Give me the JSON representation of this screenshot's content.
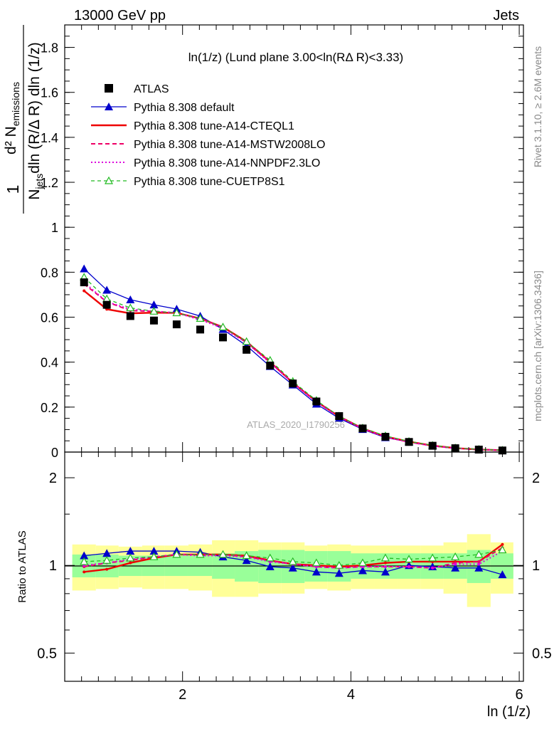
{
  "header": {
    "left": "13000 GeV pp",
    "right": "Jets"
  },
  "side_labels": {
    "rivet": "Rivet 3.1.10, ≥ 2.6M events",
    "mcplots": "mcplots.cern.ch [arXiv:1306.3436]"
  },
  "analysis_id": "ATLAS_2020_I1790256",
  "ratio_ylabel": "Ratio to ATLAS",
  "colors": {
    "data": "#000000",
    "default": "#0000cc",
    "cteql1": "#ee0000",
    "mstw": "#ee0066",
    "nnpdf": "#dd00dd",
    "cuetp8s1": "#22bb22",
    "band_inner": "#99ff99",
    "band_outer": "#ffff99"
  },
  "chart_data": {
    "type": "line",
    "title": "ln(1/z) (Lund plane 3.00<ln(RΔ R)<3.33)",
    "xlabel": "ln (1/z)",
    "ylabel": "1/N_jets d² N_emissions / dln (R/Δ R) dln (1/z)",
    "xlim": [
      0.6,
      6.05
    ],
    "ylim": [
      0,
      1.9
    ],
    "ratio_ylim": [
      0.4,
      2.45
    ],
    "ratio_log_scale": true,
    "x_ticks": [
      2,
      4,
      6
    ],
    "y_ticks": [
      0,
      0.2,
      0.4,
      0.6,
      0.8,
      1,
      1.2,
      1.4,
      1.6,
      1.8
    ],
    "ratio_ticks": [
      0.5,
      1,
      2
    ],
    "legend_position": "top-left",
    "x": [
      0.83,
      1.1,
      1.38,
      1.66,
      1.93,
      2.21,
      2.48,
      2.76,
      3.04,
      3.31,
      3.59,
      3.86,
      4.14,
      4.41,
      4.69,
      4.97,
      5.24,
      5.52,
      5.8
    ],
    "x_edges": [
      0.69,
      0.97,
      1.24,
      1.52,
      1.79,
      2.07,
      2.35,
      2.62,
      2.9,
      3.17,
      3.45,
      3.72,
      4.0,
      4.28,
      4.55,
      4.83,
      5.1,
      5.38,
      5.66,
      5.93
    ],
    "data": {
      "name": "ATLAS",
      "values": [
        0.755,
        0.655,
        0.605,
        0.585,
        0.568,
        0.545,
        0.51,
        0.455,
        0.385,
        0.305,
        0.225,
        0.16,
        0.105,
        0.068,
        0.045,
        0.028,
        0.017,
        0.011,
        0.007
      ],
      "band_inner": [
        0.09,
        0.09,
        0.08,
        0.08,
        0.08,
        0.08,
        0.1,
        0.12,
        0.13,
        0.13,
        0.12,
        0.12,
        0.1,
        0.1,
        0.1,
        0.1,
        0.1,
        0.13,
        0.1
      ],
      "band_outer": [
        0.18,
        0.17,
        0.16,
        0.17,
        0.17,
        0.18,
        0.22,
        0.22,
        0.2,
        0.2,
        0.17,
        0.18,
        0.17,
        0.17,
        0.17,
        0.17,
        0.2,
        0.28,
        0.2
      ]
    },
    "series": [
      {
        "name": "Pythia 8.308 default",
        "style": "default",
        "ratio": [
          1.08,
          1.1,
          1.12,
          1.12,
          1.12,
          1.11,
          1.07,
          1.04,
          0.99,
          0.98,
          0.95,
          0.94,
          0.96,
          0.95,
          1.0,
          0.99,
          0.98,
          0.98,
          0.93
        ]
      },
      {
        "name": "Pythia 8.308 tune-A14-CTEQL1",
        "style": "cteql1",
        "ratio": [
          0.95,
          0.97,
          1.02,
          1.06,
          1.09,
          1.09,
          1.09,
          1.08,
          1.04,
          1.01,
          1.0,
          0.99,
          1.0,
          1.02,
          1.03,
          1.03,
          1.03,
          1.03,
          1.18
        ]
      },
      {
        "name": "Pythia 8.308 tune-A14-MSTW2008LO",
        "style": "mstw",
        "ratio": [
          0.99,
          1.02,
          1.04,
          1.07,
          1.09,
          1.09,
          1.09,
          1.07,
          1.04,
          1.01,
          0.99,
          0.98,
          0.99,
          0.99,
          0.99,
          0.98,
          1.02,
          1.03,
          1.15
        ]
      },
      {
        "name": "Pythia 8.308 tune-A14-NNPDF2.3LO",
        "style": "nnpdf",
        "ratio": [
          1.0,
          1.02,
          1.05,
          1.07,
          1.09,
          1.08,
          1.08,
          1.07,
          1.03,
          1.01,
          0.99,
          0.98,
          0.99,
          0.99,
          0.99,
          0.98,
          1.01,
          1.01,
          1.12
        ]
      },
      {
        "name": "Pythia 8.308 tune-CUETP8S1",
        "style": "cuetp8s1",
        "ratio": [
          1.03,
          1.04,
          1.06,
          1.07,
          1.09,
          1.09,
          1.09,
          1.08,
          1.06,
          1.03,
          1.02,
          1.0,
          1.02,
          1.06,
          1.05,
          1.06,
          1.07,
          1.09,
          1.13
        ]
      }
    ]
  }
}
